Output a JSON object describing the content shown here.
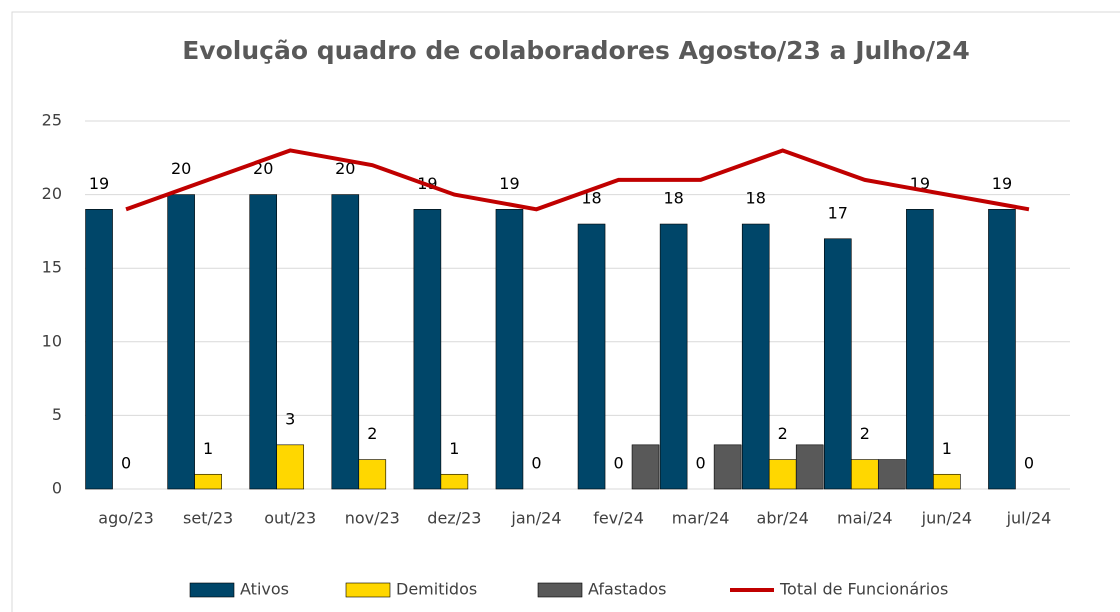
{
  "chart_data": {
    "type": "bar",
    "title": "Evolução quadro de colaboradores Agosto/23 a Julho/24",
    "categories": [
      "ago/23",
      "set/23",
      "out/23",
      "nov/23",
      "dez/23",
      "jan/24",
      "fev/24",
      "mar/24",
      "abr/24",
      "mai/24",
      "jun/24",
      "jul/24"
    ],
    "series": [
      {
        "name": "Ativos",
        "color": "#004669",
        "values": [
          19,
          20,
          20,
          20,
          19,
          19,
          18,
          18,
          18,
          17,
          19,
          19
        ],
        "labels": true
      },
      {
        "name": "Demitidos",
        "color": "#ffd700",
        "values": [
          0,
          1,
          3,
          2,
          1,
          0,
          0,
          0,
          2,
          2,
          1,
          0
        ],
        "labels": true
      },
      {
        "name": "Afastados",
        "color": "#595959",
        "values": [
          0,
          0,
          0,
          0,
          0,
          0,
          3,
          3,
          3,
          2,
          0,
          0
        ],
        "labels": false
      },
      {
        "name": "Total de Funcionários",
        "color": "#c00000",
        "type": "line",
        "values": [
          19,
          21,
          23,
          22,
          20,
          19,
          21,
          21,
          23,
          21,
          20,
          19
        ]
      }
    ],
    "ylim": [
      0,
      25
    ],
    "yticks": [
      0,
      5,
      10,
      15,
      20,
      25
    ],
    "grid": true,
    "legend": "bottom"
  }
}
